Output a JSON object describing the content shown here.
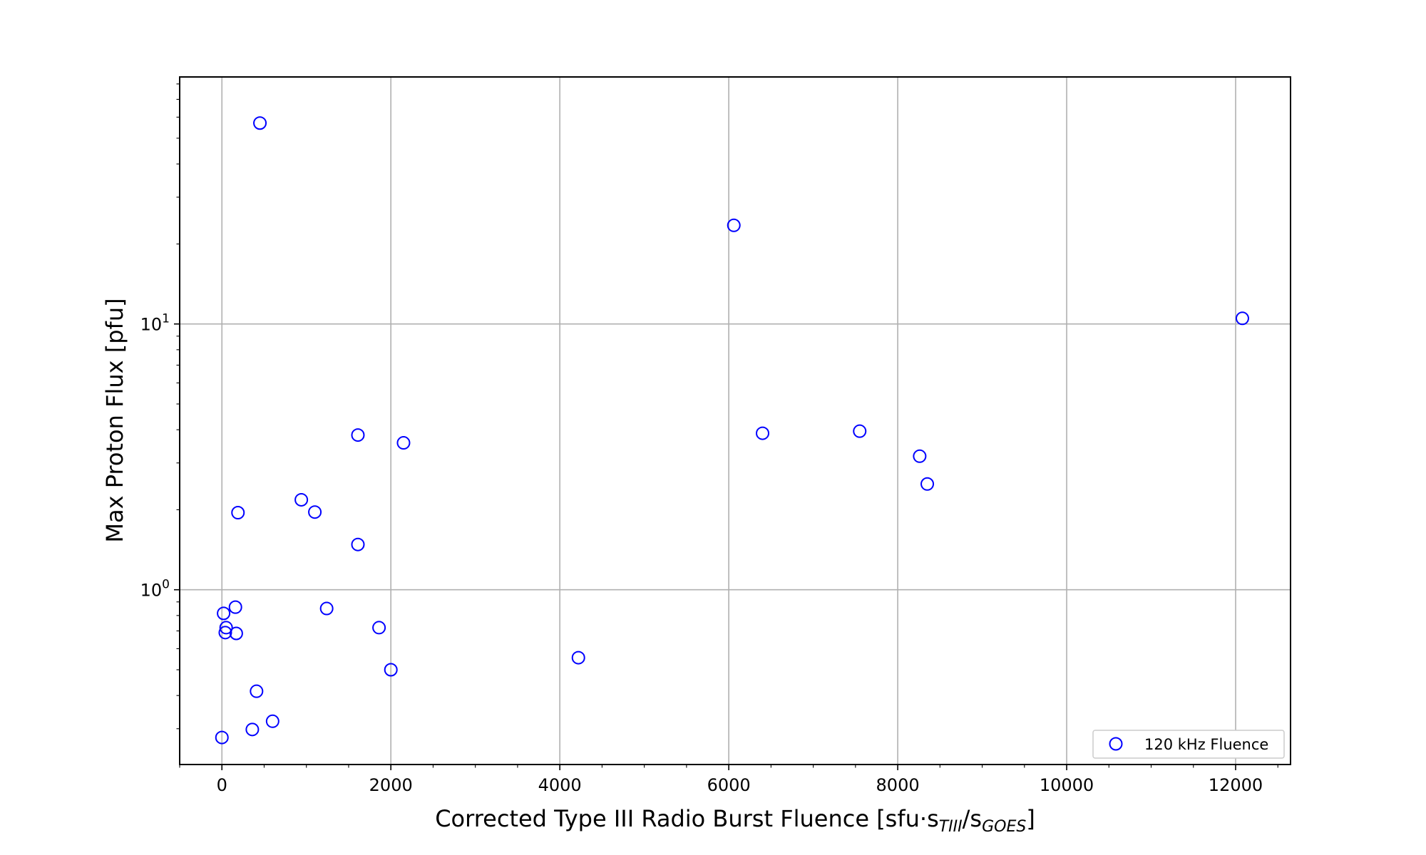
{
  "chart_data": {
    "type": "scatter",
    "xlabel_main": "Corrected Type III Radio Burst Fluence [sfu·s",
    "xlabel_sub1": "TIII",
    "xlabel_mid": "/s",
    "xlabel_sub2": "GOES",
    "xlabel_end": "]",
    "ylabel": "Max Proton Flux [pfu]",
    "xlim": [
      -500,
      12650
    ],
    "ylim": [
      0.22,
      85
    ],
    "yscale": "log",
    "grid": true,
    "legend_position": "lower-right",
    "x_ticks": [
      0,
      2000,
      4000,
      6000,
      8000,
      10000,
      12000
    ],
    "x_tick_labels": [
      "0",
      "2000",
      "4000",
      "6000",
      "8000",
      "10000",
      "12000"
    ],
    "y_ticks": [
      1,
      10
    ],
    "y_tick_base": "10",
    "y_tick_exponents": [
      "0",
      "1"
    ],
    "series": [
      {
        "name": "120 kHz Fluence",
        "color": "#0000ff",
        "marker": "open-circle",
        "points": [
          {
            "x": 450,
            "y": 57
          },
          {
            "x": 6060,
            "y": 23.5
          },
          {
            "x": 12080,
            "y": 10.5
          },
          {
            "x": 1610,
            "y": 3.82
          },
          {
            "x": 2150,
            "y": 3.57
          },
          {
            "x": 6400,
            "y": 3.88
          },
          {
            "x": 7550,
            "y": 3.95
          },
          {
            "x": 8260,
            "y": 3.18
          },
          {
            "x": 8350,
            "y": 2.5
          },
          {
            "x": 940,
            "y": 2.18
          },
          {
            "x": 1100,
            "y": 1.96
          },
          {
            "x": 190,
            "y": 1.95
          },
          {
            "x": 1610,
            "y": 1.48
          },
          {
            "x": 160,
            "y": 0.86
          },
          {
            "x": 20,
            "y": 0.815
          },
          {
            "x": 1240,
            "y": 0.85
          },
          {
            "x": 50,
            "y": 0.72
          },
          {
            "x": 40,
            "y": 0.69
          },
          {
            "x": 170,
            "y": 0.685
          },
          {
            "x": 1860,
            "y": 0.72
          },
          {
            "x": 4220,
            "y": 0.555
          },
          {
            "x": 2000,
            "y": 0.5
          },
          {
            "x": 410,
            "y": 0.415
          },
          {
            "x": 600,
            "y": 0.32
          },
          {
            "x": 360,
            "y": 0.298
          },
          {
            "x": 0,
            "y": 0.278
          }
        ]
      }
    ]
  }
}
